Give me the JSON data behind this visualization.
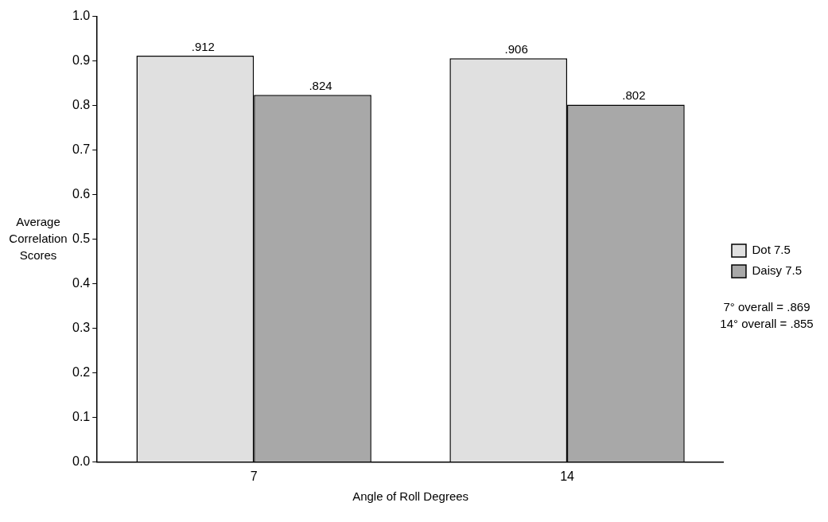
{
  "chart_data": {
    "type": "bar",
    "xlabel": "Angle of Roll Degrees",
    "ylabel": "Average Correlation Scores",
    "categories": [
      "7",
      "14"
    ],
    "series": [
      {
        "name": "Dot 7.5",
        "color": "#e0e0e0",
        "values": [
          0.912,
          0.906
        ],
        "value_labels": [
          ".912",
          ".906"
        ]
      },
      {
        "name": "Daisy 7.5",
        "color": "#a8a8a8",
        "values": [
          0.824,
          0.802
        ],
        "value_labels": [
          ".824",
          ".802"
        ]
      }
    ],
    "ylim": [
      0,
      1
    ],
    "yticks": [
      {
        "value": 0,
        "label": "0.0"
      },
      0.1,
      0.2,
      0.3,
      0.4,
      0.5,
      0.6,
      0.7,
      0.8,
      0.9,
      {
        "value": 1,
        "label": "1.0"
      }
    ],
    "grid": false,
    "legend": "right",
    "annotations": [
      "7° overall = .869",
      "14° overall = .855"
    ]
  }
}
